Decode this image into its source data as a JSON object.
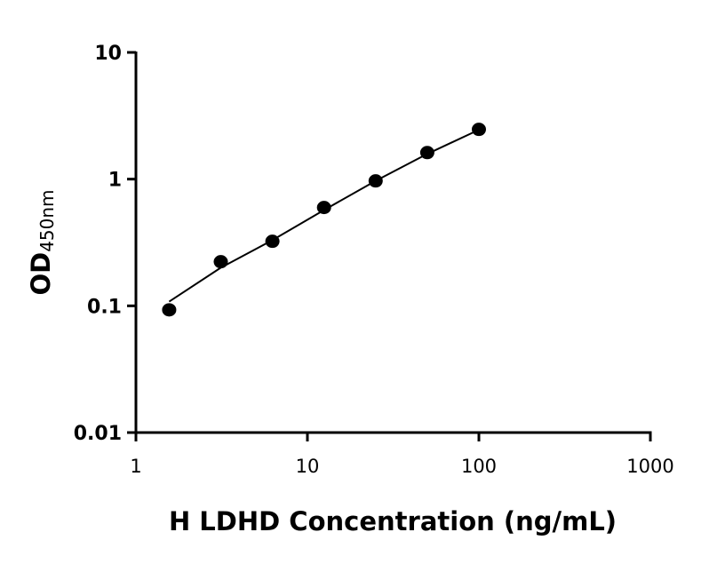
{
  "chart_data": {
    "type": "scatter",
    "title": "",
    "xlabel": "H LDHD Concentration (ng/mL)",
    "ylabel": "OD",
    "ylabel_subscript": "450nm",
    "xscale": "log",
    "yscale": "log",
    "xlim": [
      1,
      1000
    ],
    "ylim": [
      0.01,
      10
    ],
    "xticks": [
      1,
      10,
      100,
      1000
    ],
    "xtick_labels": [
      "1",
      "10",
      "100",
      "1000"
    ],
    "yticks": [
      0.01,
      0.1,
      1,
      10
    ],
    "ytick_labels": [
      "0.01",
      "0.1",
      "1",
      "10"
    ],
    "grid": false,
    "marker_color": "#000000",
    "points": {
      "x": [
        1.5625,
        3.125,
        6.25,
        12.5,
        25,
        50,
        100
      ],
      "y": [
        0.093,
        0.223,
        0.323,
        0.597,
        0.968,
        1.62,
        2.47
      ]
    },
    "fit_curve": {
      "x": [
        1.5625,
        3.125,
        6.25,
        12.5,
        25,
        50,
        100
      ],
      "y": [
        0.108,
        0.2,
        0.33,
        0.57,
        0.97,
        1.58,
        2.45
      ]
    }
  }
}
